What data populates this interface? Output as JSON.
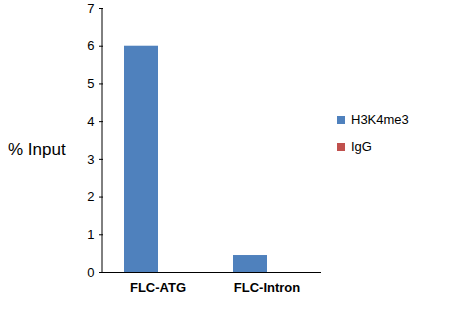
{
  "chart_data": {
    "type": "bar",
    "categories": [
      "FLC-ATG",
      "FLC-Intron"
    ],
    "series": [
      {
        "name": "H3K4me3",
        "color": "#4f81bd",
        "values": [
          6.0,
          0.45
        ]
      },
      {
        "name": "IgG",
        "color": "#c0504d",
        "values": [
          0,
          0
        ]
      }
    ],
    "y_label": "% Input",
    "ylim": [
      0,
      7
    ],
    "yticks": [
      0,
      1,
      2,
      3,
      4,
      5,
      6,
      7
    ],
    "grid": false,
    "legend": "right"
  }
}
